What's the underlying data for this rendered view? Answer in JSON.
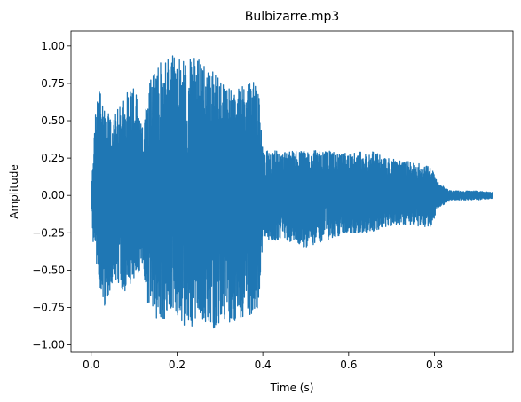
{
  "chart_data": {
    "type": "line",
    "title": "Bulbizarre.mp3",
    "xlabel": "Time (s)",
    "ylabel": "Amplitude",
    "xlim": [
      -0.047,
      0.983
    ],
    "ylim": [
      -1.05,
      1.1
    ],
    "x_ticks": [
      0.0,
      0.2,
      0.4,
      0.6,
      0.8
    ],
    "x_tick_labels": [
      "0.0",
      "0.2",
      "0.4",
      "0.6",
      "0.8"
    ],
    "y_ticks": [
      -1.0,
      -0.75,
      -0.5,
      -0.25,
      0.0,
      0.25,
      0.5,
      0.75,
      1.0
    ],
    "y_tick_labels": [
      "−1.00",
      "−0.75",
      "−0.50",
      "−0.25",
      "0.00",
      "0.25",
      "0.50",
      "0.75",
      "1.00"
    ],
    "grid": false,
    "series_color": "#1f77b4",
    "series": [
      {
        "envelope": [
          {
            "t": 0.0,
            "max": 0.02,
            "min": -0.02
          },
          {
            "t": 0.005,
            "max": 0.3,
            "min": -0.35
          },
          {
            "t": 0.01,
            "max": 0.55,
            "min": -0.45
          },
          {
            "t": 0.02,
            "max": 0.75,
            "min": -0.6
          },
          {
            "t": 0.03,
            "max": 0.6,
            "min": -0.75
          },
          {
            "t": 0.05,
            "max": 0.5,
            "min": -0.6
          },
          {
            "t": 0.08,
            "max": 0.7,
            "min": -0.65
          },
          {
            "t": 0.1,
            "max": 0.75,
            "min": -0.55
          },
          {
            "t": 0.12,
            "max": 0.45,
            "min": -0.5
          },
          {
            "t": 0.135,
            "max": 0.8,
            "min": -0.8
          },
          {
            "t": 0.16,
            "max": 0.9,
            "min": -0.85
          },
          {
            "t": 0.19,
            "max": 0.95,
            "min": -0.8
          },
          {
            "t": 0.22,
            "max": 0.9,
            "min": -0.9
          },
          {
            "t": 0.25,
            "max": 0.95,
            "min": -0.85
          },
          {
            "t": 0.28,
            "max": 0.85,
            "min": -0.9
          },
          {
            "t": 0.31,
            "max": 0.75,
            "min": -0.85
          },
          {
            "t": 0.34,
            "max": 0.7,
            "min": -0.9
          },
          {
            "t": 0.37,
            "max": 0.8,
            "min": -0.8
          },
          {
            "t": 0.39,
            "max": 0.7,
            "min": -0.75
          },
          {
            "t": 0.4,
            "max": 0.3,
            "min": -0.3
          },
          {
            "t": 0.45,
            "max": 0.3,
            "min": -0.3
          },
          {
            "t": 0.5,
            "max": 0.3,
            "min": -0.35
          },
          {
            "t": 0.55,
            "max": 0.3,
            "min": -0.3
          },
          {
            "t": 0.6,
            "max": 0.28,
            "min": -0.25
          },
          {
            "t": 0.65,
            "max": 0.3,
            "min": -0.25
          },
          {
            "t": 0.7,
            "max": 0.25,
            "min": -0.2
          },
          {
            "t": 0.75,
            "max": 0.22,
            "min": -0.2
          },
          {
            "t": 0.79,
            "max": 0.2,
            "min": -0.22
          },
          {
            "t": 0.81,
            "max": 0.08,
            "min": -0.08
          },
          {
            "t": 0.84,
            "max": 0.03,
            "min": -0.03
          },
          {
            "t": 0.9,
            "max": 0.03,
            "min": -0.03
          },
          {
            "t": 0.935,
            "max": 0.02,
            "min": -0.02
          }
        ]
      }
    ]
  }
}
